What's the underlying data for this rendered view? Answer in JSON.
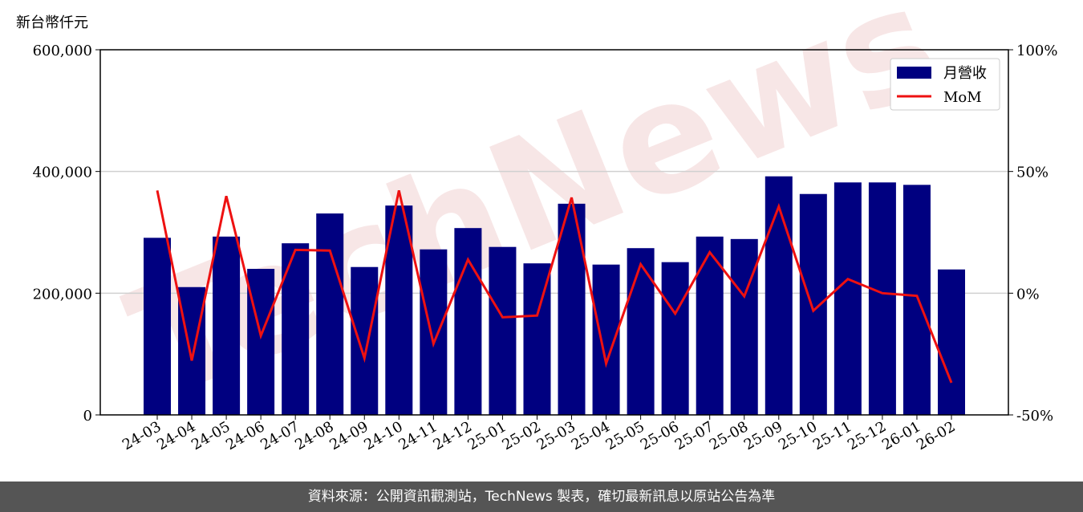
{
  "chart_data": {
    "type": "bar_line",
    "y_label": "新台幣仟元",
    "watermark": "TechNews",
    "footer": "資料來源：公開資訊觀測站，TechNews 製表，確切最新訊息以原站公告為準",
    "categories": [
      "24-03",
      "24-04",
      "24-05",
      "24-06",
      "24-07",
      "24-08",
      "24-09",
      "24-10",
      "24-11",
      "24-12",
      "25-01",
      "25-02",
      "25-03",
      "25-04",
      "25-05",
      "25-06",
      "25-07",
      "25-08",
      "25-09",
      "25-10",
      "25-11",
      "25-12",
      "26-01",
      "26-02"
    ],
    "series": [
      {
        "name": "月營收",
        "type": "bar",
        "color": "#000080",
        "values": [
          291000,
          210000,
          293000,
          240000,
          282000,
          331000,
          243000,
          344000,
          272000,
          307000,
          276000,
          249000,
          347000,
          247000,
          274000,
          251000,
          293000,
          289000,
          392000,
          363000,
          382000,
          382000,
          378000,
          239000
        ]
      },
      {
        "name": "MoM",
        "type": "line",
        "axis": "y2",
        "color": "#ee1111",
        "values": [
          42.2,
          -27.7,
          39.9,
          -17.5,
          17.8,
          17.5,
          -26.7,
          42.2,
          -20.8,
          13.8,
          -9.9,
          -9.2,
          39.3,
          -28.9,
          11.9,
          -8.4,
          16.8,
          -1.3,
          35.6,
          -7.2,
          5.8,
          0,
          -1.1,
          -36.8
        ]
      }
    ],
    "ylim": [
      0,
      600000
    ],
    "yticks": [
      0,
      {
        "value": 200000,
        "label": "200,000"
      },
      {
        "value": 400000,
        "label": "400,000"
      },
      {
        "value": 600000,
        "label": "600,000"
      }
    ],
    "y2lim": [
      -50,
      100
    ],
    "y2ticks": [
      {
        "value": -50,
        "label": "-50%"
      },
      {
        "value": 0,
        "label": "0%"
      },
      {
        "value": 50,
        "label": "50%"
      },
      {
        "value": 100,
        "label": "100%"
      }
    ],
    "grid": true,
    "legend": "upper right"
  }
}
